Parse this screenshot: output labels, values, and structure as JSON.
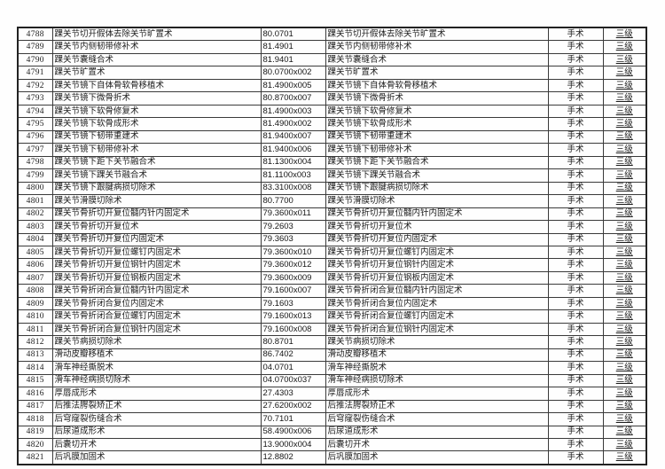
{
  "table": {
    "rows": [
      {
        "id": "4788",
        "name": "踝关节切开假体去除关节旷置术",
        "code": "80.0701",
        "category": "手术",
        "level": "三级"
      },
      {
        "id": "4789",
        "name": "踝关节内侧韧带修补术",
        "code": "81.4901",
        "category": "手术",
        "level": "三级"
      },
      {
        "id": "4790",
        "name": "踝关节囊缝合术",
        "code": "81.9401",
        "category": "手术",
        "level": "三级"
      },
      {
        "id": "4791",
        "name": "踝关节旷置术",
        "code": "80.0700x002",
        "category": "手术",
        "level": "三级"
      },
      {
        "id": "4792",
        "name": "踝关节镜下自体骨软骨移植术",
        "code": "81.4900x005",
        "category": "手术",
        "level": "三级"
      },
      {
        "id": "4793",
        "name": "踝关节镜下微骨折术",
        "code": "80.8700x007",
        "category": "手术",
        "level": "三级"
      },
      {
        "id": "4794",
        "name": "踝关节镜下软骨修复术",
        "code": "81.4900x003",
        "category": "手术",
        "level": "三级"
      },
      {
        "id": "4795",
        "name": "踝关节镜下软骨成形术",
        "code": "81.4900x002",
        "category": "手术",
        "level": "三级"
      },
      {
        "id": "4796",
        "name": "踝关节镜下韧带重建术",
        "code": "81.9400x007",
        "category": "手术",
        "level": "三级"
      },
      {
        "id": "4797",
        "name": "踝关节镜下韧带修补术",
        "code": "81.9400x006",
        "category": "手术",
        "level": "三级"
      },
      {
        "id": "4798",
        "name": "踝关节镜下距下关节融合术",
        "code": "81.1300x004",
        "category": "手术",
        "level": "三级"
      },
      {
        "id": "4799",
        "name": "踝关节镜下踝关节融合术",
        "code": "81.1100x003",
        "category": "手术",
        "level": "三级"
      },
      {
        "id": "4800",
        "name": "踝关节镜下跟腱病损切除术",
        "code": "83.3100x008",
        "category": "手术",
        "level": "三级"
      },
      {
        "id": "4801",
        "name": "踝关节滑膜切除术",
        "code": "80.7700",
        "category": "手术",
        "level": "三级"
      },
      {
        "id": "4802",
        "name": "踝关节骨折切开复位髓内针内固定术",
        "code": "79.3600x011",
        "category": "手术",
        "level": "三级"
      },
      {
        "id": "4803",
        "name": "踝关节骨折切开复位术",
        "code": "79.2603",
        "category": "手术",
        "level": "三级"
      },
      {
        "id": "4804",
        "name": "踝关节骨折切开复位内固定术",
        "code": "79.3603",
        "category": "手术",
        "level": "三级"
      },
      {
        "id": "4805",
        "name": "踝关节骨折切开复位螺钉内固定术",
        "code": "79.3600x010",
        "category": "手术",
        "level": "三级"
      },
      {
        "id": "4806",
        "name": "踝关节骨折切开复位钢针内固定术",
        "code": "79.3600x012",
        "category": "手术",
        "level": "三级"
      },
      {
        "id": "4807",
        "name": "踝关节骨折切开复位钢板内固定术",
        "code": "79.3600x009",
        "category": "手术",
        "level": "三级"
      },
      {
        "id": "4808",
        "name": "踝关节骨折闭合复位髓内针内固定术",
        "code": "79.1600x007",
        "category": "手术",
        "level": "三级"
      },
      {
        "id": "4809",
        "name": "踝关节骨折闭合复位内固定术",
        "code": "79.1603",
        "category": "手术",
        "level": "三级"
      },
      {
        "id": "4810",
        "name": "踝关节骨折闭合复位螺钉内固定术",
        "code": "79.1600x013",
        "category": "手术",
        "level": "三级"
      },
      {
        "id": "4811",
        "name": "踝关节骨折闭合复位钢针内固定术",
        "code": "79.1600x008",
        "category": "手术",
        "level": "三级"
      },
      {
        "id": "4812",
        "name": "踝关节病损切除术",
        "code": "80.8701",
        "category": "手术",
        "level": "三级"
      },
      {
        "id": "4813",
        "name": "滑动皮瓣移植术",
        "code": "86.7402",
        "category": "手术",
        "level": "三级"
      },
      {
        "id": "4814",
        "name": "滑车神经撕脱术",
        "code": "04.0701",
        "category": "手术",
        "level": "三级"
      },
      {
        "id": "4815",
        "name": "滑车神经病损切除术",
        "code": "04.0700x037",
        "category": "手术",
        "level": "三级"
      },
      {
        "id": "4816",
        "name": "厚唇成形术",
        "code": "27.4303",
        "category": "手术",
        "level": "三级"
      },
      {
        "id": "4817",
        "name": "后推法腭裂矫正术",
        "code": "27.6200x002",
        "category": "手术",
        "level": "三级"
      },
      {
        "id": "4818",
        "name": "后穹窿裂伤缝合术",
        "code": "70.7101",
        "category": "手术",
        "level": "三级"
      },
      {
        "id": "4819",
        "name": "后尿道成形术",
        "code": "58.4900x006",
        "category": "手术",
        "level": "三级"
      },
      {
        "id": "4820",
        "name": "后囊切开术",
        "code": "13.9000x004",
        "category": "手术",
        "level": "三级"
      },
      {
        "id": "4821",
        "name": "后巩膜加固术",
        "code": "12.8802",
        "category": "手术",
        "level": "三级"
      }
    ]
  }
}
